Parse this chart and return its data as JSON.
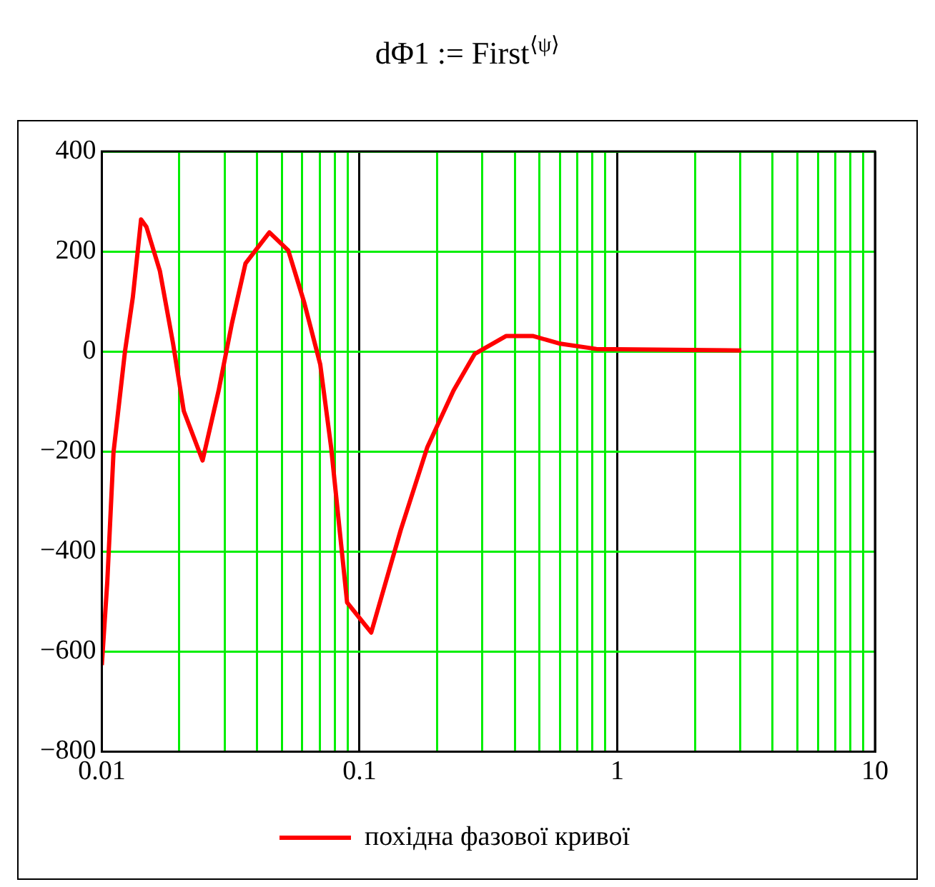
{
  "chart_data": {
    "type": "line",
    "title": "dΦ1 := First$^{⟨ψ⟩}$",
    "log": "x",
    "grid": true,
    "legend": "bottom",
    "marker": "none",
    "line_style": "solid",
    "xlim": [
      0.01,
      10
    ],
    "xticks": [
      0.01,
      {
        "value": 0.02,
        "label": null
      },
      {
        "value": 0.03,
        "label": null
      },
      {
        "value": 0.04,
        "label": null
      },
      {
        "value": 0.05,
        "label": null
      },
      {
        "value": 0.06,
        "label": null
      },
      {
        "value": 0.07,
        "label": null
      },
      {
        "value": 0.08,
        "label": null
      },
      {
        "value": 0.09,
        "label": null
      },
      0.1,
      {
        "value": 0.2,
        "label": null
      },
      {
        "value": 0.3,
        "label": null
      },
      {
        "value": 0.4,
        "label": null
      },
      {
        "value": 0.5,
        "label": null
      },
      {
        "value": 0.6,
        "label": null
      },
      {
        "value": 0.7,
        "label": null
      },
      {
        "value": 0.8,
        "label": null
      },
      {
        "value": 0.9,
        "label": null
      },
      1,
      {
        "value": 2,
        "label": null
      },
      {
        "value": 3,
        "label": null
      },
      {
        "value": 4,
        "label": null
      },
      {
        "value": 5,
        "label": null
      },
      {
        "value": 6,
        "label": null
      },
      {
        "value": 7,
        "label": null
      },
      {
        "value": 8,
        "label": null
      },
      {
        "value": 9,
        "label": null
      },
      10
    ],
    "ylim": [
      -800,
      400
    ],
    "yticks": [
      {
        "value": -800,
        "label": "−800"
      },
      {
        "value": -600,
        "label": "−600"
      },
      {
        "value": -400,
        "label": "−400"
      },
      {
        "value": -200,
        "label": "−200"
      },
      0,
      200,
      400
    ],
    "series": [
      {
        "name": "похідна фазової кривої",
        "color": "#ff0000",
        "x": [
          0.01,
          0.0105,
          0.0111,
          0.0123,
          0.0132,
          0.0142,
          0.0149,
          0.0168,
          0.0189,
          0.0208,
          0.0246,
          0.0284,
          0.032,
          0.0361,
          0.0447,
          0.0529,
          0.061,
          0.0704,
          0.0776,
          0.0895,
          0.111,
          0.1445,
          0.1831,
          0.2317,
          0.2797,
          0.371,
          0.47,
          0.595,
          0.83,
          3.03
        ],
        "values": [
          -627,
          -461,
          -202,
          0,
          109,
          264,
          249,
          161,
          16,
          -119,
          -218,
          -78,
          57,
          176,
          238,
          202,
          98,
          -26,
          -192,
          -502,
          -562,
          -357,
          -192,
          -78,
          -5,
          31,
          31,
          16,
          5,
          2
        ]
      }
    ]
  }
}
